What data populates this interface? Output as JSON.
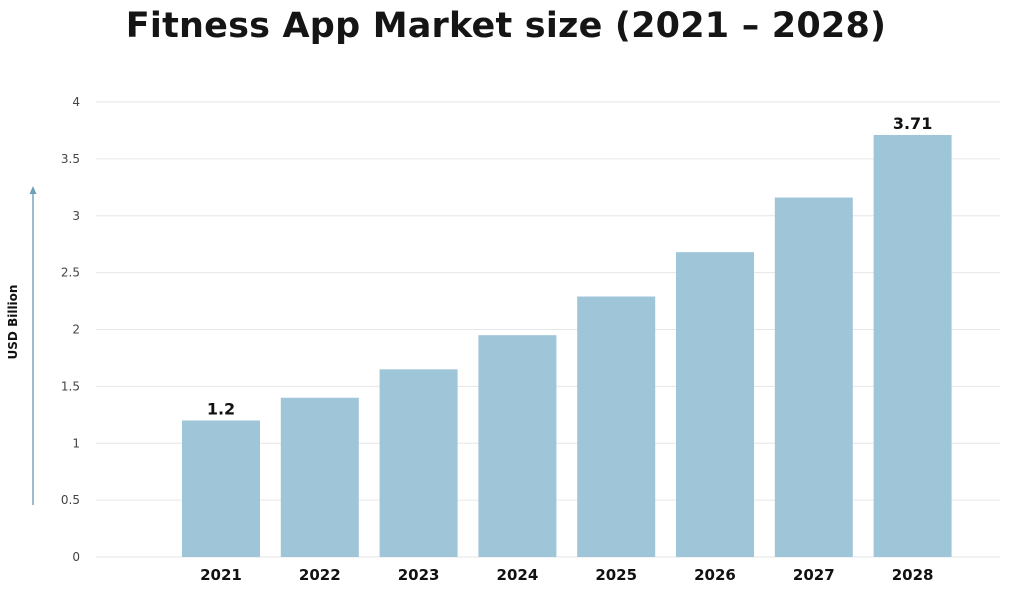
{
  "chart_data": {
    "type": "bar",
    "title": "Fitness App Market size (2021 – 2028)",
    "xlabel": "",
    "ylabel": "USD Billion",
    "categories": [
      "2021",
      "2022",
      "2023",
      "2024",
      "2025",
      "2026",
      "2027",
      "2028"
    ],
    "values": [
      1.2,
      1.4,
      1.65,
      1.95,
      2.29,
      2.68,
      3.16,
      3.71
    ],
    "data_labels": {
      "2021": "1.2",
      "2028": "3.71"
    },
    "ylim": [
      0,
      4
    ],
    "yticks": [
      "0",
      "0.5",
      "1",
      "1.5",
      "2",
      "2.5",
      "3",
      "3.5",
      "4"
    ],
    "grid": true,
    "legend": "none",
    "colors": {
      "bar": "#9fc5d9",
      "grid": "#e6e6e6",
      "axis_arrow": "#6f9fb6",
      "text": "#111111"
    }
  }
}
